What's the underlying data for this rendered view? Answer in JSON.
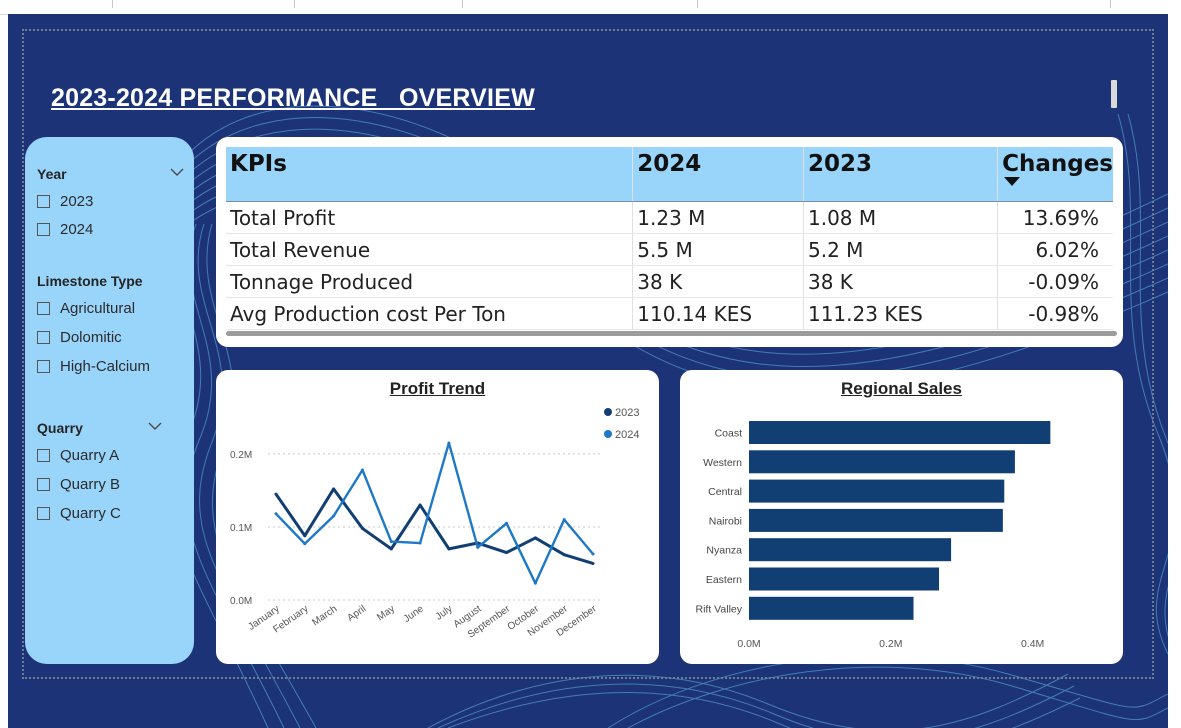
{
  "report": {
    "title": "2023-2024 PERFORMANCE   OVERVIEW"
  },
  "colors": {
    "background": "#1c3477",
    "slicer_bg": "#99d4fb",
    "header_bg": "#99d4fb",
    "series_2023": "#123f73",
    "series_2024": "#1e78c8",
    "bar": "#123f73",
    "positive": "#3c8a3c",
    "negative": "#cc2e6a"
  },
  "slicers": {
    "year": {
      "label": "Year",
      "icon": "chevron-down-icon",
      "options": [
        "2023",
        "2024"
      ]
    },
    "limestone_type": {
      "label": "Limestone Type",
      "options": [
        "Agricultural",
        "Dolomitic",
        "High-Calcium"
      ]
    },
    "quarry": {
      "label": "Quarry",
      "icon": "chevron-down-icon",
      "options": [
        "Quarry A",
        "Quarry B",
        "Quarry C"
      ]
    }
  },
  "kpi_table": {
    "headers": [
      "KPIs",
      "2024",
      "2023",
      "Changes"
    ],
    "sort_icon": "sort-descending-icon",
    "rows": [
      {
        "kpi": "Total Profit",
        "y2024": "1.23 M",
        "y2023": "1.08 M",
        "change": "13.69%",
        "trend": "positive"
      },
      {
        "kpi": "Total Revenue",
        "y2024": "5.5 M",
        "y2023": "5.2 M",
        "change": "6.02%",
        "trend": "positive"
      },
      {
        "kpi": "Tonnage Produced",
        "y2024": "38 K",
        "y2023": "38 K",
        "change": "-0.09%",
        "trend": "negative"
      },
      {
        "kpi": "Avg Production cost Per Ton",
        "y2024": "110.14 KES",
        "y2023": "111.23 KES",
        "change": "-0.98%",
        "trend": "negative"
      }
    ]
  },
  "chart_data": [
    {
      "type": "line",
      "title": "Profit Trend",
      "categories": [
        "January",
        "February",
        "March",
        "April",
        "May",
        "June",
        "July",
        "August",
        "September",
        "October",
        "November",
        "December"
      ],
      "series": [
        {
          "name": "2023",
          "values": [
            0.145,
            0.088,
            0.152,
            0.098,
            0.07,
            0.13,
            0.07,
            0.078,
            0.065,
            0.085,
            0.062,
            0.05
          ]
        },
        {
          "name": "2024",
          "values": [
            0.118,
            0.077,
            0.115,
            0.178,
            0.08,
            0.078,
            0.215,
            0.072,
            0.105,
            0.023,
            0.11,
            0.063
          ]
        }
      ],
      "y_ticks": [
        {
          "value": 0,
          "label": "0.0M"
        },
        {
          "value": 0.1,
          "label": "0.1M"
        },
        {
          "value": 0.2,
          "label": "0.2M"
        }
      ],
      "ylim": [
        0,
        0.23
      ],
      "grid": true,
      "legend_position": "top-right"
    },
    {
      "type": "bar",
      "orientation": "horizontal",
      "title": "Regional Sales",
      "categories": [
        "Coast",
        "Western",
        "Central",
        "Nairobi",
        "Nyanza",
        "Eastern",
        "Rift Valley"
      ],
      "values": [
        0.425,
        0.375,
        0.36,
        0.358,
        0.285,
        0.268,
        0.232
      ],
      "x_ticks": [
        {
          "value": 0,
          "label": "0.0M"
        },
        {
          "value": 0.2,
          "label": "0.2M"
        },
        {
          "value": 0.4,
          "label": "0.4M"
        }
      ],
      "xlim": [
        0,
        0.44
      ]
    }
  ]
}
